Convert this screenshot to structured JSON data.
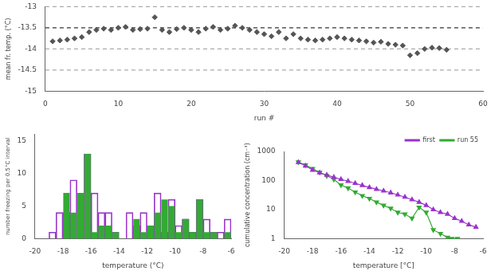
{
  "chart_data": [
    {
      "type": "scatter",
      "xlabel": "run #",
      "ylabel": "mean fr. temp. (°C)",
      "x": [
        1,
        2,
        3,
        4,
        5,
        6,
        7,
        8,
        9,
        10,
        11,
        12,
        13,
        14,
        15,
        16,
        17,
        18,
        19,
        20,
        21,
        22,
        23,
        24,
        25,
        26,
        27,
        28,
        29,
        30,
        31,
        32,
        33,
        34,
        35,
        36,
        37,
        38,
        39,
        40,
        41,
        42,
        43,
        44,
        45,
        46,
        47,
        48,
        49,
        50,
        51,
        52,
        53,
        54,
        55
      ],
      "values": [
        -13.82,
        -13.8,
        -13.78,
        -13.75,
        -13.72,
        -13.6,
        -13.55,
        -13.52,
        -13.55,
        -13.5,
        -13.48,
        -13.55,
        -13.53,
        -13.52,
        -13.25,
        -13.55,
        -13.6,
        -13.53,
        -13.5,
        -13.55,
        -13.6,
        -13.52,
        -13.48,
        -13.55,
        -13.52,
        -13.45,
        -13.5,
        -13.55,
        -13.6,
        -13.65,
        -13.7,
        -13.6,
        -13.75,
        -13.65,
        -13.75,
        -13.78,
        -13.8,
        -13.78,
        -13.75,
        -13.72,
        -13.75,
        -13.78,
        -13.8,
        -13.82,
        -13.85,
        -13.83,
        -13.88,
        -13.9,
        -13.92,
        -14.15,
        -14.1,
        -14.0,
        -13.97,
        -13.98,
        -14.02
      ],
      "color": "#555555",
      "marker": "diamond",
      "reference_lines": [
        {
          "value": -13.5,
          "color": "#333333",
          "line_style": "dashed"
        },
        {
          "value": -13.0,
          "color": "#aaaaaa",
          "line_style": "dashed"
        },
        {
          "value": -14.0,
          "color": "#aaaaaa",
          "line_style": "dashed"
        },
        {
          "value": -14.5,
          "color": "#aaaaaa",
          "line_style": "dashed"
        }
      ],
      "xlim": [
        0,
        60
      ],
      "ylim": [
        -15,
        -13
      ],
      "xticks": [
        0,
        10,
        20,
        30,
        40,
        50,
        60
      ],
      "yticks": [
        -15,
        -14.5,
        -14,
        -13.5,
        -13
      ],
      "grid": false
    },
    {
      "type": "histogram",
      "xlabel": "temperature (°C)",
      "ylabel": "number freezing per 0.5°C interval",
      "bins": [
        -19.0,
        -18.5,
        -18.0,
        -17.5,
        -17.0,
        -16.5,
        -16.0,
        -15.5,
        -15.0,
        -14.5,
        -14.0,
        -13.5,
        -13.0,
        -12.5,
        -12.0,
        -11.5,
        -11.0,
        -10.5,
        -10.0,
        -9.5,
        -9.0,
        -8.5,
        -8.0,
        -7.5,
        -7.0,
        -6.5,
        -6.0
      ],
      "series": [
        {
          "color": "#9933cc",
          "values": [
            1,
            4,
            4,
            9,
            0,
            13,
            7,
            4,
            4,
            1,
            0,
            4,
            2,
            4,
            2,
            7,
            1,
            6,
            2,
            3,
            1,
            6,
            3,
            1,
            1,
            3
          ]
        },
        {
          "color": "#33aa33",
          "values": [
            0,
            0,
            7,
            4,
            7,
            13,
            1,
            2,
            2,
            1,
            0,
            0,
            3,
            1,
            2,
            4,
            6,
            5,
            1,
            3,
            1,
            6,
            1,
            1,
            0,
            1
          ]
        }
      ],
      "xlim": [
        -20,
        -6
      ],
      "ylim": [
        0,
        16
      ],
      "xticks": [
        -20,
        -18,
        -16,
        -14,
        -12,
        -10,
        -8,
        -6
      ],
      "yticks": [
        0,
        5,
        10,
        15
      ],
      "grid": false
    },
    {
      "type": "line",
      "xlabel": "temperature [°C]",
      "ylabel": "cumulative concentration (cm⁻³)",
      "log": "y",
      "series": [
        {
          "name": "first",
          "color": "#9933cc",
          "marker": "triangle-up",
          "x": [
            -19.0,
            -18.5,
            -18.0,
            -17.5,
            -17.0,
            -16.5,
            -16.0,
            -15.5,
            -15.0,
            -14.5,
            -14.0,
            -13.5,
            -13.0,
            -12.5,
            -12.0,
            -11.5,
            -11.0,
            -10.5,
            -10.0,
            -9.5,
            -9.0,
            -8.5,
            -8.0,
            -7.5,
            -7.0,
            -6.5
          ],
          "values": [
            420,
            320,
            230,
            185,
            155,
            130,
            110,
            95,
            80,
            68,
            58,
            50,
            44,
            38,
            32,
            27,
            22,
            18,
            14,
            10,
            8,
            7,
            5,
            4,
            3,
            2.5
          ]
        },
        {
          "name": "run 55",
          "color": "#33aa33",
          "marker": "triangle-down",
          "x": [
            -19.0,
            -18.5,
            -18.0,
            -17.5,
            -17.0,
            -16.5,
            -16.0,
            -15.5,
            -15.0,
            -14.5,
            -14.0,
            -13.5,
            -13.0,
            -12.5,
            -12.0,
            -11.5,
            -11.0,
            -10.5,
            -10.0,
            -9.5,
            -9.0,
            -8.5,
            -8.2,
            -7.8
          ],
          "values": [
            430,
            340,
            255,
            190,
            145,
            110,
            70,
            55,
            40,
            30,
            24,
            18,
            14,
            11,
            8,
            7,
            5,
            12,
            8,
            2,
            1.5,
            1.1,
            1.0,
            1.0
          ]
        }
      ],
      "xlim": [
        -20,
        -6
      ],
      "ylim": [
        1,
        1000
      ],
      "xticks": [
        -20,
        -18,
        -16,
        -14,
        -12,
        -10,
        -8,
        -6
      ],
      "yticks": [
        1,
        10,
        100,
        1000
      ],
      "legend": "upper right",
      "grid": false
    }
  ]
}
